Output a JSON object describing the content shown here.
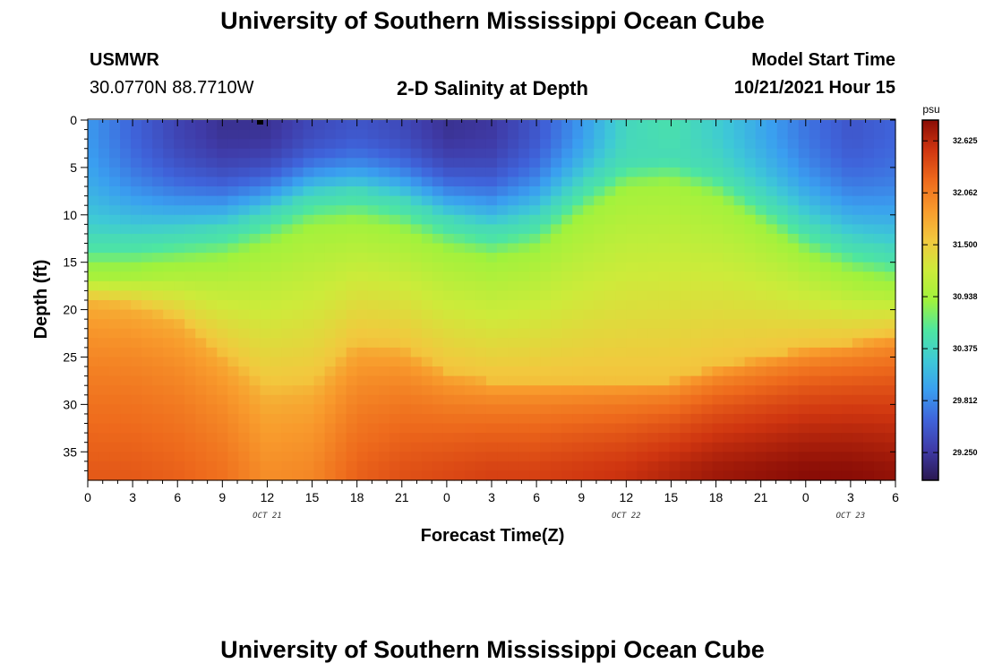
{
  "page": {
    "title_top": "University of Southern Mississippi Ocean Cube",
    "title_bottom": "University of Southern Mississippi Ocean Cube",
    "station_name": "USMWR",
    "station_coords": "30.0770N  88.7710W",
    "plot_title": "2-D Salinity at Depth",
    "model_start_label": "Model Start Time",
    "model_start_value": "10/21/2021 Hour 15"
  },
  "colors": {
    "colormap": [
      "#2a1850",
      "#3f3aa6",
      "#3f63da",
      "#3a9ef0",
      "#3ec9d6",
      "#4ee6a0",
      "#a0f23c",
      "#cdeb3a",
      "#f2c83e",
      "#f89a2c",
      "#ee6a1c",
      "#cf3510",
      "#8a0d06"
    ]
  },
  "chart_data": {
    "type": "heatmap",
    "title": "2-D Salinity at Depth",
    "xlabel": "Forecast Time(Z)",
    "ylabel": "Depth (ft)",
    "x_tick_labels": [
      "0",
      "3",
      "6",
      "9",
      "12",
      "15",
      "18",
      "21",
      "0",
      "3",
      "6",
      "9",
      "12",
      "15",
      "18",
      "21",
      "0",
      "3",
      "6"
    ],
    "x_range_hours": [
      0,
      54
    ],
    "date_labels": [
      {
        "text": "OCT 21",
        "hour": 12
      },
      {
        "text": "OCT 22",
        "hour": 36
      },
      {
        "text": "OCT 23",
        "hour": 51
      }
    ],
    "y_tick_labels": [
      "0",
      "5",
      "10",
      "15",
      "20",
      "25",
      "30",
      "35"
    ],
    "y_range_ft": [
      0,
      38
    ],
    "colorbar": {
      "unit": "psu",
      "range": [
        28.95,
        32.85
      ],
      "tick_labels": [
        "32.625",
        "32.062",
        "31.500",
        "30.938",
        "30.375",
        "29.812",
        "29.250"
      ]
    },
    "surface_salinity_psu": [
      {
        "hour": 0,
        "value": 29.9
      },
      {
        "hour": 3,
        "value": 29.6
      },
      {
        "hour": 6,
        "value": 29.35
      },
      {
        "hour": 9,
        "value": 29.2
      },
      {
        "hour": 12,
        "value": 29.2
      },
      {
        "hour": 15,
        "value": 29.4
      },
      {
        "hour": 18,
        "value": 29.5
      },
      {
        "hour": 21,
        "value": 29.4
      },
      {
        "hour": 24,
        "value": 29.2
      },
      {
        "hour": 27,
        "value": 29.25
      },
      {
        "hour": 30,
        "value": 29.5
      },
      {
        "hour": 33,
        "value": 29.9
      },
      {
        "hour": 36,
        "value": 30.4
      },
      {
        "hour": 39,
        "value": 30.5
      },
      {
        "hour": 42,
        "value": 30.3
      },
      {
        "hour": 45,
        "value": 30.0
      },
      {
        "hour": 48,
        "value": 29.7
      },
      {
        "hour": 51,
        "value": 29.5
      },
      {
        "hour": 54,
        "value": 29.6
      }
    ],
    "halocline_depth_ft": [
      {
        "hour": 0,
        "value": 12.5
      },
      {
        "hour": 3,
        "value": 12.5
      },
      {
        "hour": 6,
        "value": 12.0
      },
      {
        "hour": 9,
        "value": 11.5
      },
      {
        "hour": 12,
        "value": 10.0
      },
      {
        "hour": 15,
        "value": 8.0
      },
      {
        "hour": 18,
        "value": 7.5
      },
      {
        "hour": 21,
        "value": 8.5
      },
      {
        "hour": 24,
        "value": 10.5
      },
      {
        "hour": 27,
        "value": 11.5
      },
      {
        "hour": 30,
        "value": 10.5
      },
      {
        "hour": 33,
        "value": 7.0
      },
      {
        "hour": 36,
        "value": 4.0
      },
      {
        "hour": 39,
        "value": 3.5
      },
      {
        "hour": 42,
        "value": 5.0
      },
      {
        "hour": 45,
        "value": 8.0
      },
      {
        "hour": 48,
        "value": 11.0
      },
      {
        "hour": 51,
        "value": 13.0
      },
      {
        "hour": 54,
        "value": 14.0
      }
    ],
    "salty_depth_ft": [
      {
        "hour": 0,
        "value": 19.0
      },
      {
        "hour": 3,
        "value": 19.5
      },
      {
        "hour": 6,
        "value": 21.0
      },
      {
        "hour": 9,
        "value": 24.5
      },
      {
        "hour": 12,
        "value": 28.5
      },
      {
        "hour": 15,
        "value": 28.0
      },
      {
        "hour": 18,
        "value": 23.5
      },
      {
        "hour": 21,
        "value": 24.0
      },
      {
        "hour": 24,
        "value": 26.5
      },
      {
        "hour": 27,
        "value": 27.5
      },
      {
        "hour": 30,
        "value": 27.5
      },
      {
        "hour": 33,
        "value": 27.5
      },
      {
        "hour": 36,
        "value": 27.5
      },
      {
        "hour": 39,
        "value": 27.5
      },
      {
        "hour": 42,
        "value": 26.0
      },
      {
        "hour": 45,
        "value": 25.0
      },
      {
        "hour": 48,
        "value": 24.0
      },
      {
        "hour": 51,
        "value": 23.5
      },
      {
        "hour": 54,
        "value": 22.5
      }
    ],
    "bottom_salinity_psu": [
      {
        "hour": 0,
        "value": 32.3
      },
      {
        "hour": 3,
        "value": 32.3
      },
      {
        "hour": 6,
        "value": 32.25
      },
      {
        "hour": 9,
        "value": 32.15
      },
      {
        "hour": 12,
        "value": 31.95
      },
      {
        "hour": 15,
        "value": 32.0
      },
      {
        "hour": 18,
        "value": 32.25
      },
      {
        "hour": 21,
        "value": 32.35
      },
      {
        "hour": 24,
        "value": 32.4
      },
      {
        "hour": 27,
        "value": 32.45
      },
      {
        "hour": 30,
        "value": 32.45
      },
      {
        "hour": 33,
        "value": 32.5
      },
      {
        "hour": 36,
        "value": 32.55
      },
      {
        "hour": 39,
        "value": 32.65
      },
      {
        "hour": 42,
        "value": 32.75
      },
      {
        "hour": 45,
        "value": 32.8
      },
      {
        "hour": 48,
        "value": 32.85
      },
      {
        "hour": 51,
        "value": 32.85
      },
      {
        "hour": 54,
        "value": 32.8
      }
    ]
  }
}
